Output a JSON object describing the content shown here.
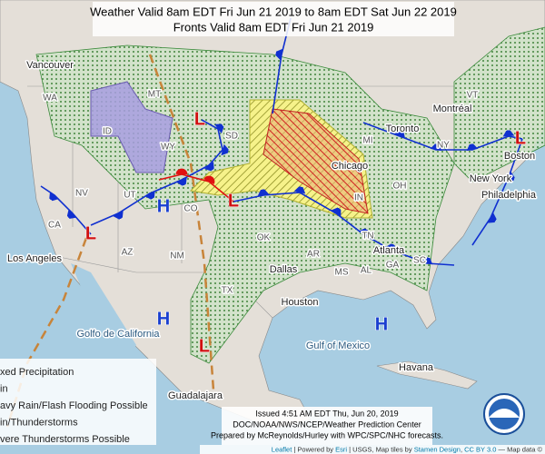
{
  "header": {
    "lines": [
      "Weather Valid 8am EDT Fri Jun 21 2019 to 8am EDT Sat Jun 22 2019",
      "Fronts Valid 8am EDT Fri Jun 21 2019"
    ]
  },
  "places": [
    "Vancouver",
    "WA",
    "MT",
    "ID",
    "WY",
    "SD",
    "NV",
    "UT",
    "CO",
    "CA",
    "AZ",
    "NM",
    "OK",
    "TX",
    "Montréal",
    "Toronto",
    "NY",
    "VT",
    "Boston",
    "New York",
    "Philadelphia",
    "Chicago",
    "IN",
    "OH",
    "MI",
    "Atlanta",
    "SC",
    "GA",
    "AL",
    "MS",
    "TN",
    "AR",
    "Dallas",
    "Houston",
    "Los Angeles",
    "Golfo de California",
    "Gulf of Mexico",
    "Havana",
    "Guadalajara"
  ],
  "pressure_centers": [
    "L",
    "L",
    "L",
    "L",
    "L",
    "H",
    "H",
    "H"
  ],
  "legend": {
    "items": [
      "xed Precipitation",
      "in",
      "avy Rain/Flash Flooding Possible",
      "in/Thunderstorms",
      "vere Thunderstorms Possible"
    ]
  },
  "issued": {
    "lines": [
      "Issued 4:51 AM EDT Thu, Jun 20, 2019",
      "DOC/NOAA/NWS/NCEP/Weather Prediction Center",
      "Prepared by McReynolds/Hurley with WPC/SPC/NHC forecasts."
    ]
  },
  "attribution": [
    "Leaflet",
    " | Powered by ",
    "Esri",
    " | USGS, Map tiles by ",
    "Stamen Design",
    ", ",
    "CC BY 3.0",
    " — Map data ©"
  ]
}
